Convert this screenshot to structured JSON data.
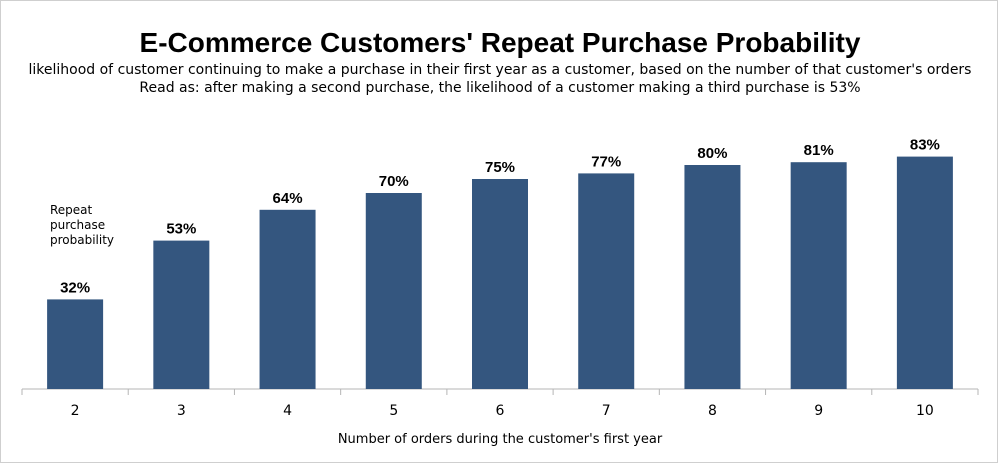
{
  "chart_data": {
    "type": "bar",
    "title": "E-Commerce Customers' Repeat Purchase Probability",
    "subtitle": [
      "likelihood of customer continuing to make a purchase in their first year as a customer, based on the number of that customer's orders",
      "Read as: after making a second purchase, the likelihood of a customer making a third purchase is 53%"
    ],
    "annotation": "Repeat purchase probability",
    "xlabel": "Number of orders during the customer's first year",
    "ylabel": "",
    "categories": [
      "2",
      "3",
      "4",
      "5",
      "6",
      "7",
      "8",
      "9",
      "10"
    ],
    "values": [
      32,
      53,
      64,
      70,
      75,
      77,
      80,
      81,
      83
    ],
    "value_labels": [
      "32%",
      "53%",
      "64%",
      "70%",
      "75%",
      "77%",
      "80%",
      "81%",
      "83%"
    ],
    "ylim": [
      0,
      100
    ],
    "grid": false,
    "bar_color": "#34567f"
  }
}
